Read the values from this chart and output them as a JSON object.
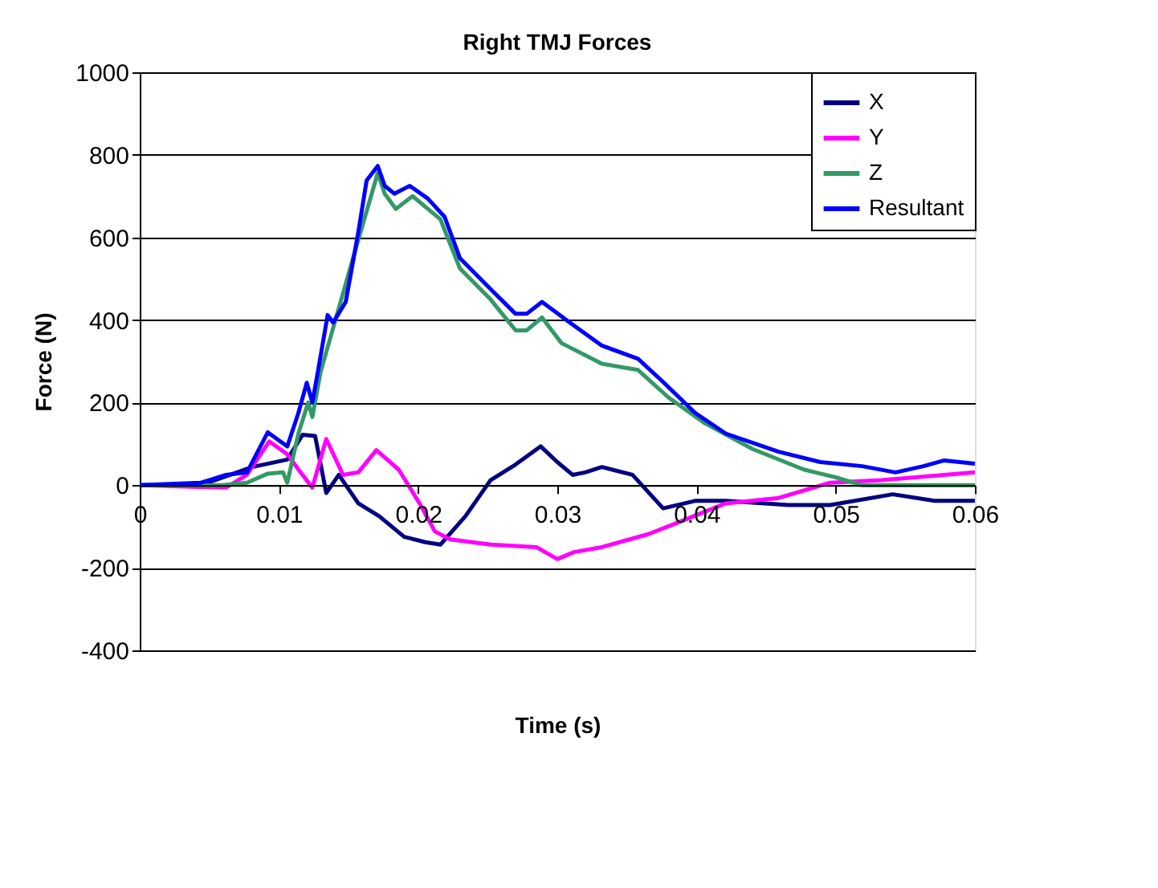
{
  "chart_data": {
    "type": "line",
    "title": "Right TMJ Forces",
    "xlabel": "Time (s)",
    "ylabel": "Force (N)",
    "xlim": [
      0,
      0.06
    ],
    "xticks": [
      0,
      0.01,
      0.02,
      0.03,
      0.04,
      0.05,
      0.06
    ],
    "ylim": [
      -400,
      1000
    ],
    "yticks": [
      -400,
      -200,
      0,
      200,
      400,
      600,
      800,
      1000
    ],
    "grid": "y",
    "legend": "top right",
    "marker": "none",
    "line_style": "solid",
    "series": [
      {
        "name": "X",
        "color": "#000080",
        "x": [
          0,
          0.0044,
          0.0081,
          0.0106,
          0.0117,
          0.0126,
          0.0134,
          0.0143,
          0.0157,
          0.0172,
          0.019,
          0.0205,
          0.0216,
          0.0234,
          0.0252,
          0.027,
          0.0288,
          0.03,
          0.0311,
          0.032,
          0.0332,
          0.0354,
          0.0376,
          0.0399,
          0.0421,
          0.0466,
          0.0496,
          0.0541,
          0.0571,
          0.06
        ],
        "values": [
          0,
          0,
          44,
          62,
          122,
          119,
          -19,
          25,
          -44,
          -75,
          -125,
          -138,
          -144,
          -75,
          12,
          50,
          94,
          56,
          25,
          31,
          44,
          25,
          -56,
          -38,
          -38,
          -48,
          -48,
          -22,
          -38,
          -38
        ]
      },
      {
        "name": "Y",
        "color": "#ff00ff",
        "x": [
          0,
          0.0062,
          0.0077,
          0.0093,
          0.0106,
          0.0114,
          0.0124,
          0.0134,
          0.0146,
          0.0157,
          0.017,
          0.0186,
          0.0201,
          0.0212,
          0.0223,
          0.0252,
          0.0285,
          0.03,
          0.0312,
          0.0332,
          0.0365,
          0.0384,
          0.0421,
          0.0459,
          0.0496,
          0.0533,
          0.06
        ],
        "values": [
          0,
          -6,
          25,
          106,
          75,
          38,
          -6,
          112,
          25,
          31,
          85,
          38,
          -44,
          -112,
          -131,
          -144,
          -150,
          -179,
          -162,
          -150,
          -119,
          -94,
          -44,
          -31,
          6,
          12,
          31
        ]
      },
      {
        "name": "Z",
        "color": "#339966",
        "x": [
          0,
          0.0059,
          0.0077,
          0.0092,
          0.0103,
          0.0106,
          0.0114,
          0.0121,
          0.0124,
          0.013,
          0.0157,
          0.0171,
          0.0176,
          0.0184,
          0.0196,
          0.0216,
          0.023,
          0.0252,
          0.027,
          0.0278,
          0.0289,
          0.0303,
          0.0332,
          0.0358,
          0.038,
          0.0406,
          0.044,
          0.0477,
          0.05,
          0.0519,
          0.06
        ],
        "values": [
          0,
          0,
          6,
          28,
          31,
          6,
          125,
          200,
          165,
          275,
          594,
          756,
          706,
          669,
          700,
          644,
          525,
          450,
          375,
          375,
          406,
          344,
          294,
          279,
          212,
          150,
          88,
          38,
          19,
          0,
          0
        ]
      },
      {
        "name": "Resultant",
        "color": "#0000ff",
        "x": [
          0,
          0.0044,
          0.0062,
          0.0077,
          0.0092,
          0.0106,
          0.0114,
          0.012,
          0.0124,
          0.0128,
          0.0135,
          0.0139,
          0.0148,
          0.0157,
          0.0163,
          0.0171,
          0.0176,
          0.0183,
          0.0194,
          0.0207,
          0.0219,
          0.023,
          0.0252,
          0.027,
          0.0278,
          0.0289,
          0.0309,
          0.0332,
          0.0358,
          0.0376,
          0.0399,
          0.0421,
          0.0459,
          0.0489,
          0.0519,
          0.0543,
          0.0563,
          0.0578,
          0.06
        ],
        "values": [
          0,
          6,
          25,
          31,
          128,
          94,
          175,
          248,
          200,
          275,
          412,
          394,
          444,
          612,
          738,
          773,
          725,
          706,
          725,
          694,
          650,
          550,
          475,
          415,
          415,
          444,
          394,
          338,
          306,
          250,
          175,
          125,
          81,
          56,
          46,
          31,
          46,
          60,
          52
        ]
      }
    ]
  }
}
